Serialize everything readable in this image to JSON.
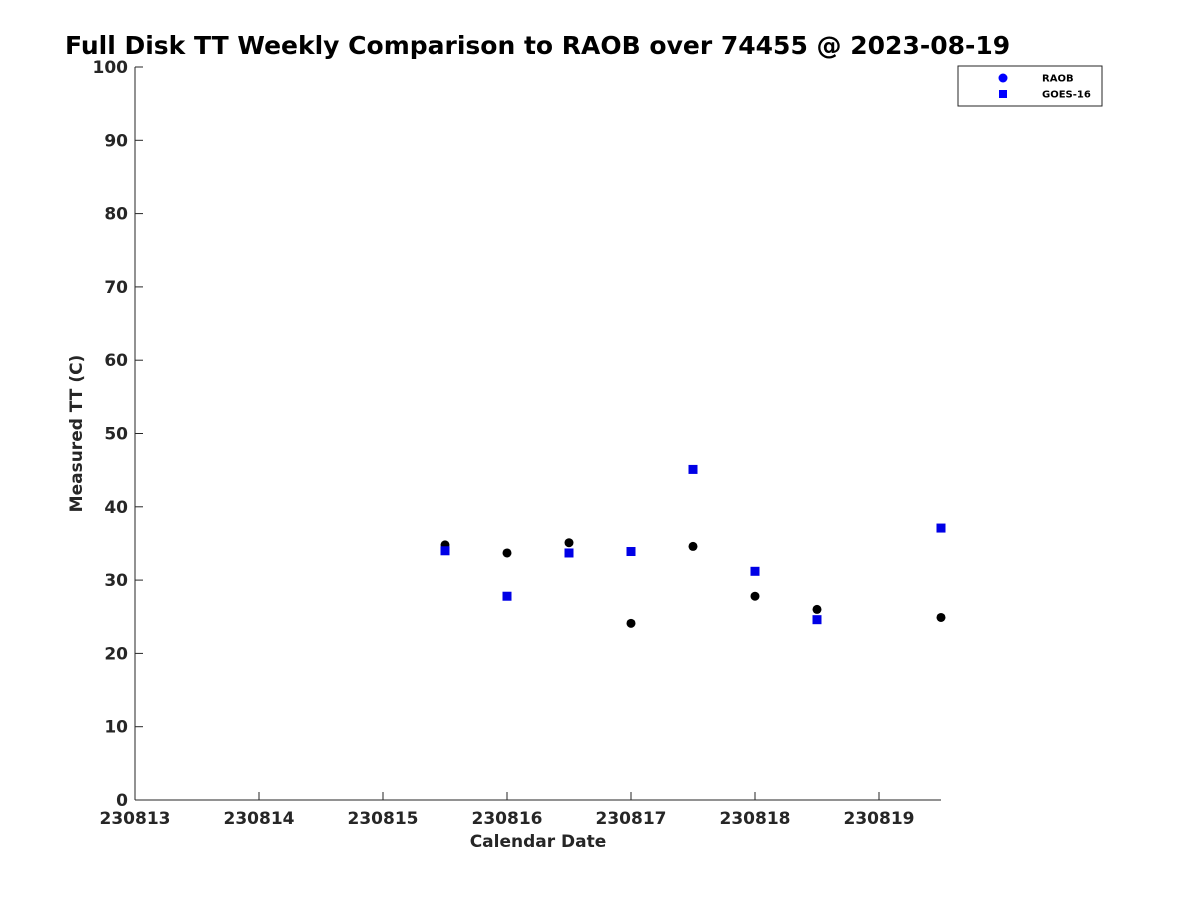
{
  "chart_data": {
    "type": "scatter",
    "title": "Full Disk TT Weekly Comparison to RAOB over 74455 @ 2023-08-19",
    "xlabel": "Calendar Date",
    "ylabel": "Measured TT (C)",
    "xlim": [
      230813,
      230819.5
    ],
    "ylim": [
      0,
      100
    ],
    "x_ticks": [
      230813,
      230814,
      230815,
      230816,
      230817,
      230818,
      230819
    ],
    "x_tick_labels": [
      "230813",
      "230814",
      "230815",
      "230816",
      "230817",
      "230818",
      "230819"
    ],
    "y_ticks": [
      0,
      10,
      20,
      30,
      40,
      50,
      60,
      70,
      80,
      90,
      100
    ],
    "y_tick_labels": [
      "0",
      "10",
      "20",
      "30",
      "40",
      "50",
      "60",
      "70",
      "80",
      "90",
      "100"
    ],
    "grid": false,
    "legend_position": "top-right",
    "series": [
      {
        "name": "RAOB",
        "marker": "circle",
        "legend_color": "#0000ff",
        "point_color": "#000000",
        "points": [
          {
            "x": 230815.5,
            "y": 34.8
          },
          {
            "x": 230816.0,
            "y": 33.7
          },
          {
            "x": 230816.5,
            "y": 35.1
          },
          {
            "x": 230817.0,
            "y": 24.1
          },
          {
            "x": 230817.5,
            "y": 34.6
          },
          {
            "x": 230818.0,
            "y": 27.8
          },
          {
            "x": 230818.5,
            "y": 26.0
          },
          {
            "x": 230819.5,
            "y": 24.9
          }
        ]
      },
      {
        "name": "GOES-16",
        "marker": "square",
        "legend_color": "#0000ff",
        "point_color": "#0000e6",
        "points": [
          {
            "x": 230815.5,
            "y": 34.0
          },
          {
            "x": 230816.0,
            "y": 27.8
          },
          {
            "x": 230816.5,
            "y": 33.7
          },
          {
            "x": 230817.0,
            "y": 33.9
          },
          {
            "x": 230817.5,
            "y": 45.1
          },
          {
            "x": 230818.0,
            "y": 31.2
          },
          {
            "x": 230818.5,
            "y": 24.6
          },
          {
            "x": 230819.5,
            "y": 37.1
          }
        ]
      }
    ]
  }
}
